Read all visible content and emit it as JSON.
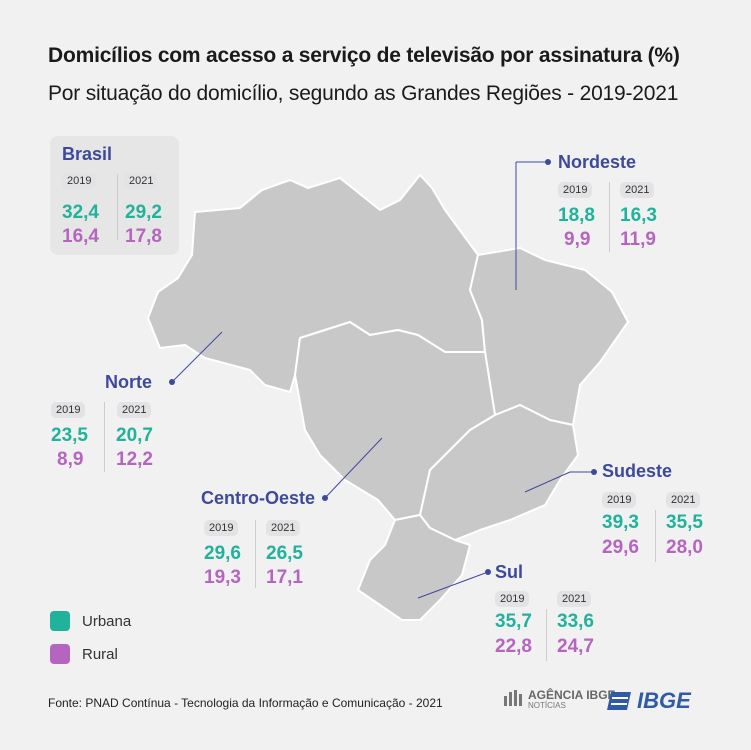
{
  "title": "Domicílios com acesso a serviço de televisão por assinatura (%)",
  "subtitle": "Por situação do domicílio, segundo as Grandes Regiões - 2019-2021",
  "year_a": "2019",
  "year_b": "2021",
  "regions": {
    "brasil": {
      "name": "Brasil",
      "urbana_2019": "32,4",
      "urbana_2021": "29,2",
      "rural_2019": "16,4",
      "rural_2021": "17,8"
    },
    "nordeste": {
      "name": "Nordeste",
      "urbana_2019": "18,8",
      "urbana_2021": "16,3",
      "rural_2019": "9,9",
      "rural_2021": "11,9"
    },
    "norte": {
      "name": "Norte",
      "urbana_2019": "23,5",
      "urbana_2021": "20,7",
      "rural_2019": "8,9",
      "rural_2021": "12,2"
    },
    "centro_oeste": {
      "name": "Centro-Oeste",
      "urbana_2019": "29,6",
      "urbana_2021": "26,5",
      "rural_2019": "19,3",
      "rural_2021": "17,1"
    },
    "sudeste": {
      "name": "Sudeste",
      "urbana_2019": "39,3",
      "urbana_2021": "35,5",
      "rural_2019": "29,6",
      "rural_2021": "28,0"
    },
    "sul": {
      "name": "Sul",
      "urbana_2019": "35,7",
      "urbana_2021": "33,6",
      "rural_2019": "22,8",
      "rural_2021": "24,7"
    }
  },
  "legend": {
    "urbana": "Urbana",
    "rural": "Rural"
  },
  "colors": {
    "urbana": "#21b29b",
    "rural": "#b565c0",
    "region_name": "#3d4a9c",
    "map_fill": "#c8c8c8",
    "map_stroke": "#ffffff"
  },
  "source": "Fonte: PNAD Contínua - Tecnologia da Informação e Comunicação - 2021",
  "logos": {
    "agencia_line1": "AGÊNCIA IBGE",
    "agencia_line2": "NOTÍCIAS",
    "ibge": "IBGE"
  }
}
